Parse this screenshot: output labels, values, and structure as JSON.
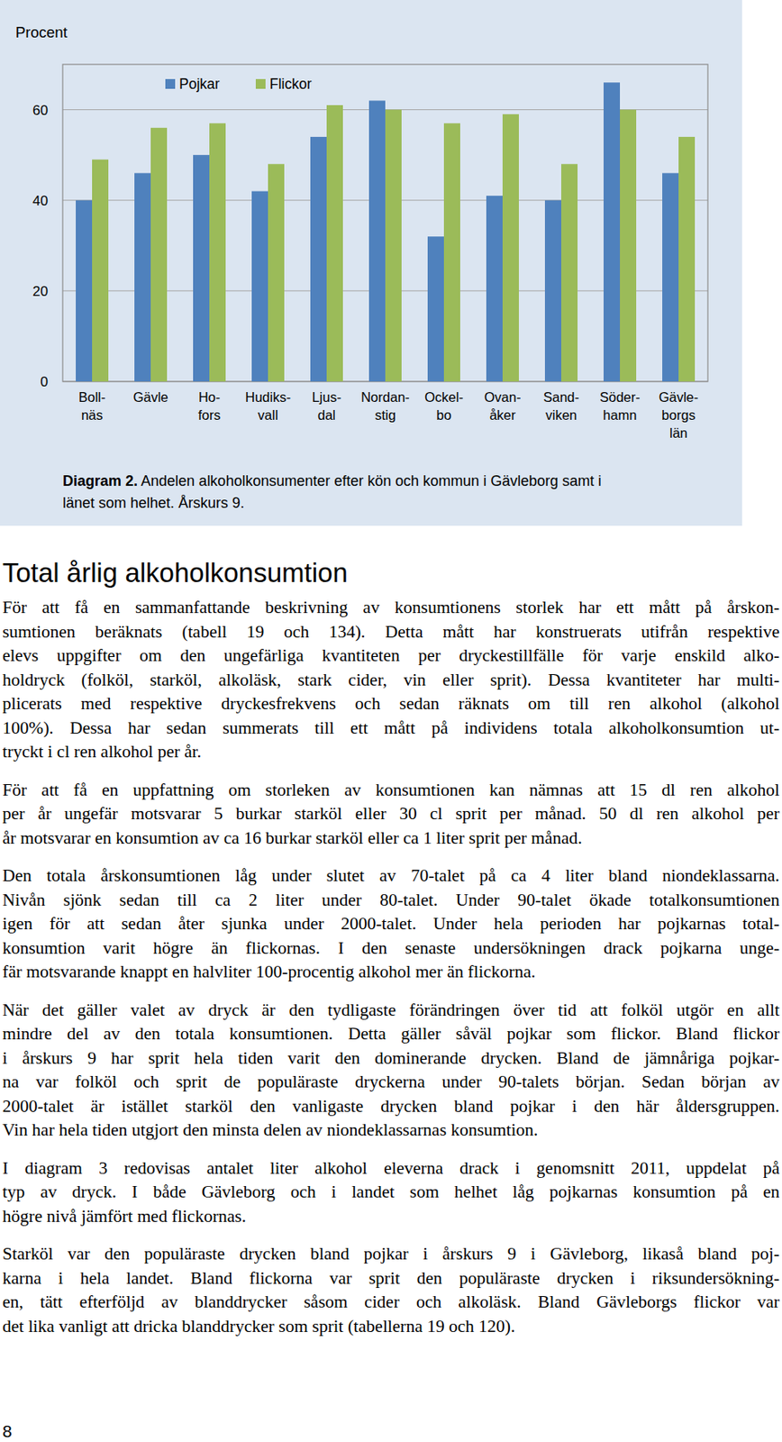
{
  "chart_data": {
    "type": "bar",
    "y_label": "Procent",
    "categories": [
      "Boll-\nnäs",
      "Gävle",
      "Ho-\nfors",
      "Hudiks-\nvall",
      "Ljus-\ndal",
      "Nordan-\nstig",
      "Ockel-\nbo",
      "Ovan-\nåker",
      "Sand-\nviken",
      "Söder-\nhamn",
      "Gävle-\nborgs\nlän"
    ],
    "series": [
      {
        "name": "Pojkar",
        "color": "#4f81bd",
        "values": [
          40,
          46,
          50,
          42,
          54,
          62,
          32,
          41,
          40,
          66,
          46
        ]
      },
      {
        "name": "Flickor",
        "color": "#9bbb59",
        "values": [
          49,
          56,
          57,
          48,
          61,
          60,
          57,
          59,
          48,
          60,
          54
        ]
      }
    ],
    "ylim": [
      0,
      70
    ],
    "yticks": [
      0,
      20,
      40,
      60
    ],
    "grid": true,
    "legend": "top",
    "caption": {
      "label": "Diagram 2.",
      "lines": [
        "Andelen alkoholkonsumenter efter kön och kommun i Gävleborg samt i",
        "länet som helhet. Årskurs 9."
      ]
    }
  },
  "document": {
    "heading": "Total årlig alkoholkonsumtion",
    "paragraphs": [
      [
        "För att få en sammanfattande beskrivning av konsumtionens storlek har ett mått på årskon-",
        "sumtionen beräknats (tabell 19 och 134). Detta mått har konstruerats utifrån respektive",
        "elevs uppgifter om den ungefärliga kvantiteten per dryckestillfälle för varje enskild alko-",
        "holdryck (folköl, starköl, alkoläsk, stark cider, vin eller sprit). Dessa kvantiteter har multi-",
        "plicerats med respektive dryckesfrekvens och sedan räknats om till ren alkohol (alkohol",
        "100%). Dessa har sedan summerats till ett mått på individens totala alkoholkonsumtion ut-",
        "tryckt i cl ren alkohol per år."
      ],
      [
        "För att få en uppfattning om storleken av konsumtionen kan nämnas att 15 dl ren alkohol",
        "per år ungefär motsvarar 5 burkar starköl eller 30 cl sprit per månad. 50 dl ren alkohol per",
        "år motsvarar en konsumtion av ca 16 burkar starköl eller ca 1 liter sprit per månad."
      ],
      [
        "Den totala årskonsumtionen låg under slutet av 70-talet på ca 4 liter bland niondeklassarna.",
        "Nivån sjönk sedan till ca 2 liter under 80-talet. Under 90-talet ökade totalkonsumtionen",
        "igen för att sedan åter sjunka under 2000-talet. Under hela perioden har pojkarnas total-",
        "konsumtion varit högre än flickornas. I den senaste undersökningen drack pojkarna unge-",
        "fär motsvarande knappt en halvliter 100-procentig alkohol mer än flickorna."
      ],
      [
        "När det gäller valet av dryck är den tydligaste förändringen över tid att folköl utgör en allt",
        "mindre del av den totala konsumtionen. Detta gäller såväl pojkar som flickor. Bland flickor",
        "i årskurs 9 har sprit hela tiden varit den dominerande drycken. Bland de jämnåriga pojkar-",
        "na var folköl och sprit de populäraste dryckerna under 90-talets början. Sedan början av",
        "2000-talet är istället starköl den vanligaste drycken bland pojkar i den här åldersgruppen.",
        "Vin har hela tiden utgjort den minsta delen av niondeklassarnas konsumtion."
      ],
      [
        "I diagram 3 redovisas antalet liter alkohol eleverna drack i genomsnitt 2011, uppdelat på",
        "typ av dryck. I både Gävleborg och i landet som helhet låg pojkarnas konsumtion på en",
        "högre nivå jämfört med flickornas."
      ],
      [
        "Starköl var den populäraste drycken bland pojkar i årskurs 9 i Gävleborg, likaså bland poj-",
        "karna i hela landet. Bland flickorna var sprit den populäraste drycken i riksundersökning-",
        "en, tätt efterföljd av blanddrycker såsom cider och alkoläsk. Bland Gävleborgs flickor var",
        "det lika vanligt att dricka blanddrycker som sprit (tabellerna 19 och 120)."
      ]
    ],
    "page_number": "8"
  }
}
